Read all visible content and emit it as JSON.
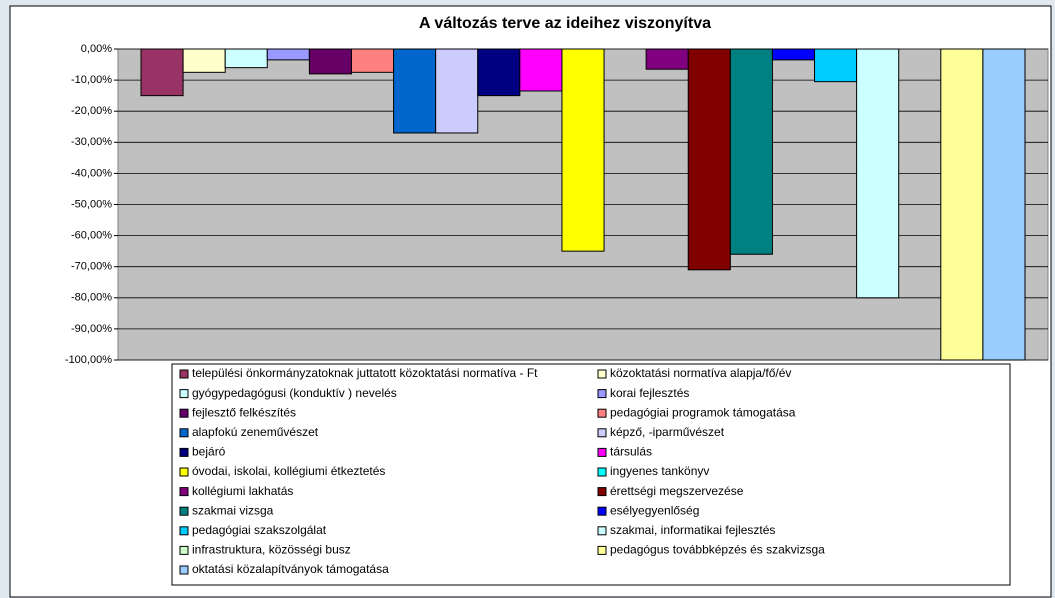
{
  "chart_data": {
    "type": "bar",
    "title": "A változás terve az ideihez viszonyítva",
    "ylim": [
      -100,
      0
    ],
    "yticks": [
      {
        "value": 0,
        "label": "0,00%"
      },
      {
        "value": -10,
        "label": "-10,00%"
      },
      {
        "value": -20,
        "label": "-20,00%"
      },
      {
        "value": -30,
        "label": "-30,00%"
      },
      {
        "value": -40,
        "label": "-40,00%"
      },
      {
        "value": -50,
        "label": "-50,00%"
      },
      {
        "value": -60,
        "label": "-60,00%"
      },
      {
        "value": -70,
        "label": "-70,00%"
      },
      {
        "value": -80,
        "label": "-80,00%"
      },
      {
        "value": -90,
        "label": "-90,00%"
      },
      {
        "value": -100,
        "label": "-100,00%"
      }
    ],
    "grid": true,
    "series": [
      {
        "name": "települési önkormányzatoknak juttatott közoktatási normatíva - Ft",
        "color": "#993366",
        "values": [
          -15
        ]
      },
      {
        "name": "közoktatási normatíva alapja/fő/év",
        "color": "#FFFFCC",
        "values": [
          -7.5
        ]
      },
      {
        "name": "gyógypedagógusi (konduktív ) nevelés",
        "color": "#CCFFFF",
        "values": [
          -6
        ]
      },
      {
        "name": "korai fejlesztés",
        "color": "#9999FF",
        "values": [
          -3.5
        ]
      },
      {
        "name": "fejlesztő felkészítés",
        "color": "#660066",
        "values": [
          -8
        ]
      },
      {
        "name": "pedagógiai programok támogatása",
        "color": "#FF8080",
        "values": [
          -7.5
        ]
      },
      {
        "name": "alapfokú zeneművészet",
        "color": "#0066CC",
        "values": [
          -27
        ]
      },
      {
        "name": "képző, -iparművészet",
        "color": "#CCCCFF",
        "values": [
          -27
        ]
      },
      {
        "name": "bejáró",
        "color": "#000080",
        "values": [
          -15
        ]
      },
      {
        "name": "társulás",
        "color": "#FF00FF",
        "values": [
          -13.5
        ]
      },
      {
        "name": "óvodai, iskolai, kollégiumi étkeztetés",
        "color": "#FFFF00",
        "values": [
          -65
        ]
      },
      {
        "name": "ingyenes tankönyv",
        "color": "#00FFFF",
        "values": [
          0
        ]
      },
      {
        "name": "kollégiumi lakhatás",
        "color": "#800080",
        "values": [
          -6.5
        ]
      },
      {
        "name": "érettségi megszervezése",
        "color": "#800000",
        "values": [
          -71
        ]
      },
      {
        "name": "szakmai vizsga",
        "color": "#008080",
        "values": [
          -66
        ]
      },
      {
        "name": "esélyegyenlőség",
        "color": "#0000FF",
        "values": [
          -3.5
        ]
      },
      {
        "name": "pedagógiai  szakszolgálat",
        "color": "#00CCFF",
        "values": [
          -10.5
        ]
      },
      {
        "name": "szakmai, informatikai fejlesztés",
        "color": "#CCFFFF",
        "values": [
          -80
        ]
      },
      {
        "name": "infrastruktura, közösségi busz",
        "color": "#CCFFCC",
        "values": [
          0
        ]
      },
      {
        "name": "pedagógus továbbképzés és szakvizsga",
        "color": "#FFFF99",
        "values": [
          -100
        ]
      },
      {
        "name": "oktatási közalapítványok támogatása",
        "color": "#99CCFF",
        "values": [
          -100
        ]
      }
    ]
  }
}
